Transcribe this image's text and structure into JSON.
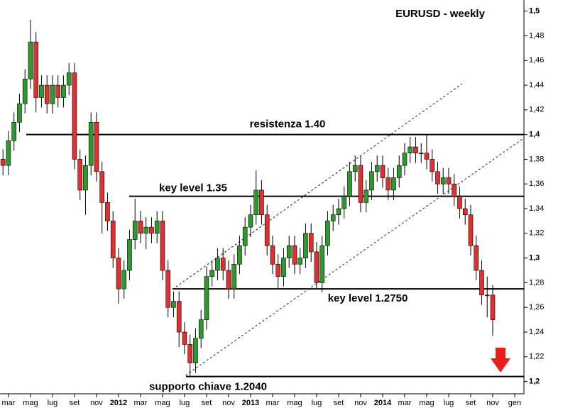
{
  "chart_data": {
    "type": "candlestick",
    "title": "EURUSD - weekly",
    "xlim": [
      -0.77,
      46.84
    ],
    "ylim": [
      1.19,
      1.509
    ],
    "xticks": [
      {
        "value": 0,
        "label": "mar"
      },
      {
        "value": 2,
        "label": "mag"
      },
      {
        "value": 4,
        "label": "lug"
      },
      {
        "value": 6,
        "label": "set"
      },
      {
        "value": 8,
        "label": "nov"
      },
      {
        "value": 10,
        "label": "2012"
      },
      {
        "value": 12,
        "label": "mar"
      },
      {
        "value": 14,
        "label": "mag"
      },
      {
        "value": 16,
        "label": "lug"
      },
      {
        "value": 18,
        "label": "set"
      },
      {
        "value": 20,
        "label": "nov"
      },
      {
        "value": 22,
        "label": "2013"
      },
      {
        "value": 24,
        "label": "mar"
      },
      {
        "value": 26,
        "label": "mag"
      },
      {
        "value": 28,
        "label": "lug"
      },
      {
        "value": 30,
        "label": "set"
      },
      {
        "value": 32,
        "label": "nov"
      },
      {
        "value": 34,
        "label": "2014"
      },
      {
        "value": 36,
        "label": "mar"
      },
      {
        "value": 38,
        "label": "mag"
      },
      {
        "value": 40,
        "label": "lug"
      },
      {
        "value": 42,
        "label": "set"
      },
      {
        "value": 44,
        "label": "nov"
      },
      {
        "value": 46,
        "label": "gen"
      }
    ],
    "yticks": [
      {
        "value": 1.2,
        "label": "1,2"
      },
      {
        "value": 1.22,
        "label": "1,22"
      },
      {
        "value": 1.24,
        "label": "1,24"
      },
      {
        "value": 1.26,
        "label": "1,26"
      },
      {
        "value": 1.28,
        "label": "1,28"
      },
      {
        "value": 1.3,
        "label": "1,3"
      },
      {
        "value": 1.32,
        "label": "1,32"
      },
      {
        "value": 1.34,
        "label": "1,34"
      },
      {
        "value": 1.36,
        "label": "1,36"
      },
      {
        "value": 1.38,
        "label": "1,38"
      },
      {
        "value": 1.4,
        "label": "1,4"
      },
      {
        "value": 1.42,
        "label": "1,42"
      },
      {
        "value": 1.44,
        "label": "1,44"
      },
      {
        "value": 1.46,
        "label": "1,46"
      },
      {
        "value": 1.48,
        "label": "1,48"
      },
      {
        "value": 1.5,
        "label": "1,5"
      }
    ],
    "up_color": "#2e9a2e",
    "down_color": "#e03030",
    "x": [
      -0.5,
      0,
      0.5,
      1,
      1.5,
      2,
      2.5,
      3,
      3.5,
      4,
      4.5,
      5,
      5.5,
      6,
      6.5,
      7,
      7.5,
      8,
      8.5,
      9,
      9.5,
      10,
      10.5,
      11,
      11.5,
      12,
      12.5,
      13,
      13.5,
      14,
      14.5,
      15,
      15.5,
      16,
      16.5,
      17,
      17.5,
      18,
      18.5,
      19,
      19.5,
      20,
      20.5,
      21,
      21.5,
      22,
      22.5,
      23,
      23.5,
      24,
      24.5,
      25,
      25.5,
      26,
      26.5,
      27,
      27.5,
      28,
      28.5,
      29,
      29.5,
      30,
      30.5,
      31,
      31.5,
      32,
      32.5,
      33,
      33.5,
      34,
      34.5,
      35,
      35.5,
      36,
      36.5,
      37,
      37.5,
      38,
      38.5,
      39,
      39.5,
      40,
      40.5,
      41,
      41.5,
      42,
      42.5,
      43,
      43.5,
      44
    ],
    "open": [
      1.38,
      1.375,
      1.395,
      1.41,
      1.425,
      1.445,
      1.475,
      1.43,
      1.44,
      1.425,
      1.44,
      1.43,
      1.44,
      1.45,
      1.38,
      1.355,
      1.375,
      1.41,
      1.37,
      1.345,
      1.33,
      1.3,
      1.275,
      1.29,
      1.315,
      1.33,
      1.32,
      1.325,
      1.32,
      1.33,
      1.29,
      1.26,
      1.265,
      1.24,
      1.23,
      1.215,
      1.235,
      1.25,
      1.285,
      1.29,
      1.3,
      1.29,
      1.275,
      1.295,
      1.31,
      1.325,
      1.335,
      1.355,
      1.335,
      1.31,
      1.295,
      1.285,
      1.3,
      1.31,
      1.295,
      1.3,
      1.32,
      1.305,
      1.28,
      1.31,
      1.33,
      1.335,
      1.34,
      1.35,
      1.37,
      1.375,
      1.345,
      1.355,
      1.37,
      1.375,
      1.365,
      1.355,
      1.365,
      1.375,
      1.385,
      1.39,
      1.385,
      1.385,
      1.38,
      1.37,
      1.36,
      1.365,
      1.36,
      1.35,
      1.34,
      1.335,
      1.31,
      1.29,
      1.27,
      1.27
    ],
    "high": [
      1.388,
      1.403,
      1.418,
      1.433,
      1.453,
      1.493,
      1.483,
      1.448,
      1.448,
      1.448,
      1.448,
      1.448,
      1.458,
      1.458,
      1.388,
      1.383,
      1.418,
      1.418,
      1.378,
      1.353,
      1.338,
      1.308,
      1.298,
      1.323,
      1.348,
      1.338,
      1.333,
      1.333,
      1.338,
      1.338,
      1.298,
      1.273,
      1.273,
      1.248,
      1.238,
      1.243,
      1.258,
      1.293,
      1.298,
      1.308,
      1.308,
      1.298,
      1.303,
      1.318,
      1.333,
      1.343,
      1.371,
      1.363,
      1.343,
      1.318,
      1.303,
      1.308,
      1.318,
      1.318,
      1.308,
      1.328,
      1.328,
      1.313,
      1.318,
      1.338,
      1.343,
      1.348,
      1.358,
      1.378,
      1.383,
      1.383,
      1.363,
      1.378,
      1.383,
      1.383,
      1.373,
      1.373,
      1.383,
      1.393,
      1.398,
      1.398,
      1.393,
      1.4,
      1.388,
      1.378,
      1.373,
      1.373,
      1.368,
      1.358,
      1.348,
      1.343,
      1.318,
      1.298,
      1.285,
      1.278
    ],
    "low": [
      1.367,
      1.367,
      1.387,
      1.402,
      1.417,
      1.437,
      1.418,
      1.422,
      1.417,
      1.417,
      1.422,
      1.422,
      1.432,
      1.372,
      1.347,
      1.335,
      1.367,
      1.362,
      1.32,
      1.322,
      1.292,
      1.263,
      1.267,
      1.282,
      1.307,
      1.312,
      1.307,
      1.312,
      1.312,
      1.282,
      1.252,
      1.252,
      1.228,
      1.222,
      1.204,
      1.207,
      1.227,
      1.242,
      1.277,
      1.282,
      1.282,
      1.267,
      1.267,
      1.287,
      1.302,
      1.317,
      1.327,
      1.327,
      1.302,
      1.287,
      1.275,
      1.277,
      1.292,
      1.287,
      1.287,
      1.292,
      1.297,
      1.275,
      1.272,
      1.302,
      1.322,
      1.327,
      1.332,
      1.342,
      1.362,
      1.337,
      1.337,
      1.347,
      1.362,
      1.357,
      1.347,
      1.347,
      1.357,
      1.367,
      1.377,
      1.377,
      1.377,
      1.372,
      1.362,
      1.352,
      1.352,
      1.352,
      1.342,
      1.332,
      1.327,
      1.302,
      1.282,
      1.262,
      1.252,
      1.237
    ],
    "close": [
      1.375,
      1.395,
      1.41,
      1.425,
      1.445,
      1.475,
      1.43,
      1.44,
      1.425,
      1.44,
      1.43,
      1.44,
      1.45,
      1.38,
      1.355,
      1.375,
      1.41,
      1.37,
      1.345,
      1.33,
      1.3,
      1.275,
      1.29,
      1.315,
      1.33,
      1.32,
      1.325,
      1.32,
      1.33,
      1.29,
      1.26,
      1.265,
      1.24,
      1.23,
      1.215,
      1.235,
      1.25,
      1.285,
      1.29,
      1.3,
      1.29,
      1.275,
      1.295,
      1.31,
      1.325,
      1.335,
      1.355,
      1.335,
      1.31,
      1.295,
      1.285,
      1.3,
      1.31,
      1.295,
      1.3,
      1.32,
      1.305,
      1.28,
      1.31,
      1.33,
      1.335,
      1.34,
      1.35,
      1.37,
      1.375,
      1.345,
      1.355,
      1.37,
      1.375,
      1.365,
      1.355,
      1.365,
      1.375,
      1.385,
      1.39,
      1.385,
      1.385,
      1.38,
      1.37,
      1.36,
      1.365,
      1.36,
      1.35,
      1.34,
      1.335,
      1.31,
      1.29,
      1.27,
      1.27,
      1.25
    ],
    "levels": [
      {
        "label": "resistenza 1.40",
        "value": 1.4
      },
      {
        "label": "key level 1.35",
        "value": 1.35
      },
      {
        "label": "key level 1.2750",
        "value": 1.275
      },
      {
        "label": "supporto chiave 1.2040",
        "value": 1.204
      }
    ],
    "channel": [
      {
        "x": [
          14.9,
          41.2
        ],
        "y": [
          1.2746,
          1.441
        ]
      },
      {
        "x": [
          16.1,
          46.8
        ],
        "y": [
          1.205,
          1.397
        ]
      }
    ]
  }
}
